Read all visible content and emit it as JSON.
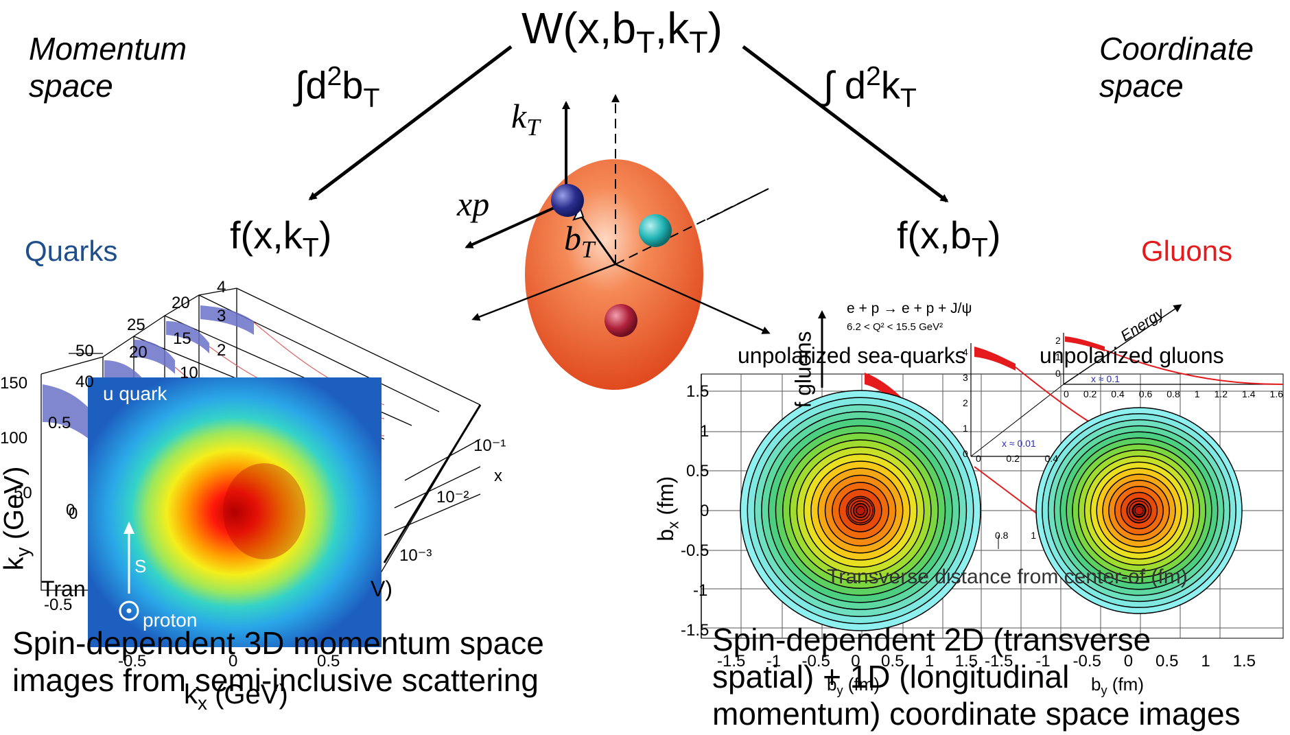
{
  "header": {
    "w_formula": "W(x,b",
    "w_sub_b": "T",
    "w_mid": ",k",
    "w_sub_k": "T",
    "w_close": ")"
  },
  "left_branch": {
    "space_line1": "Momentum",
    "space_line2": "space",
    "integral": "∫d",
    "integral_sup": "2",
    "integral_var": "b",
    "integral_sub": "T",
    "func": "f(x,k",
    "func_sub": "T",
    "func_close": ")",
    "label": "Quarks"
  },
  "right_branch": {
    "space_line1": "Coordinate",
    "space_line2": "space",
    "integral": "∫ d",
    "integral_sup": "2",
    "integral_var": "k",
    "integral_sub": "T",
    "func": "f(x,b",
    "func_sub": "T",
    "func_close": ")",
    "label": "Gluons"
  },
  "proton": {
    "kt_label": "k",
    "kt_sub": "T",
    "xp_label": "xp",
    "bt_label": "b",
    "bt_sub": "T",
    "colors": {
      "body": "#f06a35",
      "quark_blue": "#2a2f8e",
      "quark_teal": "#22b5b5",
      "quark_red": "#b0213a"
    }
  },
  "left_panel": {
    "title": "u quark",
    "spin_label": "S",
    "proton_label": "proton",
    "y_ticks": [
      "0.5",
      "0",
      "-0.5"
    ],
    "x_ticks": [
      "-0.5",
      "0",
      "0.5"
    ],
    "xlabel": "k",
    "xlabel_sub": "x",
    "xlabel_unit": " (GeV)",
    "ylabel": "k",
    "ylabel_sub": "y",
    "ylabel_unit": " (GeV)",
    "bg_ticks": [
      "150",
      "100",
      "50",
      "0"
    ],
    "bg_top_ticks": [
      "4",
      "3",
      "2",
      "20",
      "25",
      "15",
      "50",
      "20",
      "40",
      "10"
    ],
    "bg_x_ticks": [
      "10⁻¹",
      "10⁻²",
      "10⁻³"
    ],
    "bg_x_label": "x",
    "bg_axis_frag": "Tran",
    "bg_axis_frag2": "V)",
    "caption_line1": "Spin-dependent 3D momentum space",
    "caption_line2": "images from semi-inclusive scattering"
  },
  "right_panel": {
    "reaction": "e + p → e + p + J/ψ",
    "q2_range": "6.2 < Q² < 15.5 GeV²",
    "energy_label": "Energy",
    "sea_title": "unpolarized sea-quarks",
    "gluon_title": "unpolarized gluons",
    "bg_ylabel": "f gluons",
    "bg_xlabel": "Transverse distance from center-of (fm)",
    "x_eq_1": "x ≈ 0.1",
    "x_eq_2": "x ≈ 0.01",
    "inset_ticks": [
      "0",
      "0.2",
      "0.4",
      "0.6",
      "0.8",
      "1",
      "1.2",
      "1.4",
      "1.6"
    ],
    "inset_y_ticks": [
      "2",
      "1",
      "0"
    ],
    "mid_ticks": [
      "4",
      "3",
      "2",
      "1",
      "0"
    ],
    "mid_x_ticks": [
      "0",
      "0.2",
      "0.4"
    ],
    "bottom_frag": [
      "0.8",
      "1"
    ],
    "y_ticks": [
      "1.5",
      "1",
      "0.5",
      "0",
      "-0.5",
      "-1",
      "-1.5"
    ],
    "x_ticks_left": [
      "-1.5",
      "-1",
      "-0.5",
      "0",
      "0.5",
      "1",
      "1.5"
    ],
    "x_ticks_right": [
      "-1.5",
      "-1",
      "-0.5",
      "0",
      "0.5",
      "1",
      "1.5"
    ],
    "ylabel": "b",
    "ylabel_sub": "x",
    "ylabel_unit": " (fm)",
    "xlabel": "b",
    "xlabel_sub": "y",
    "xlabel_unit": " (fm)",
    "caption_line1": "Spin-dependent 2D (transverse",
    "caption_line2": "spatial) + 1D (longitudinal",
    "caption_line3": "momentum) coordinate space images"
  }
}
